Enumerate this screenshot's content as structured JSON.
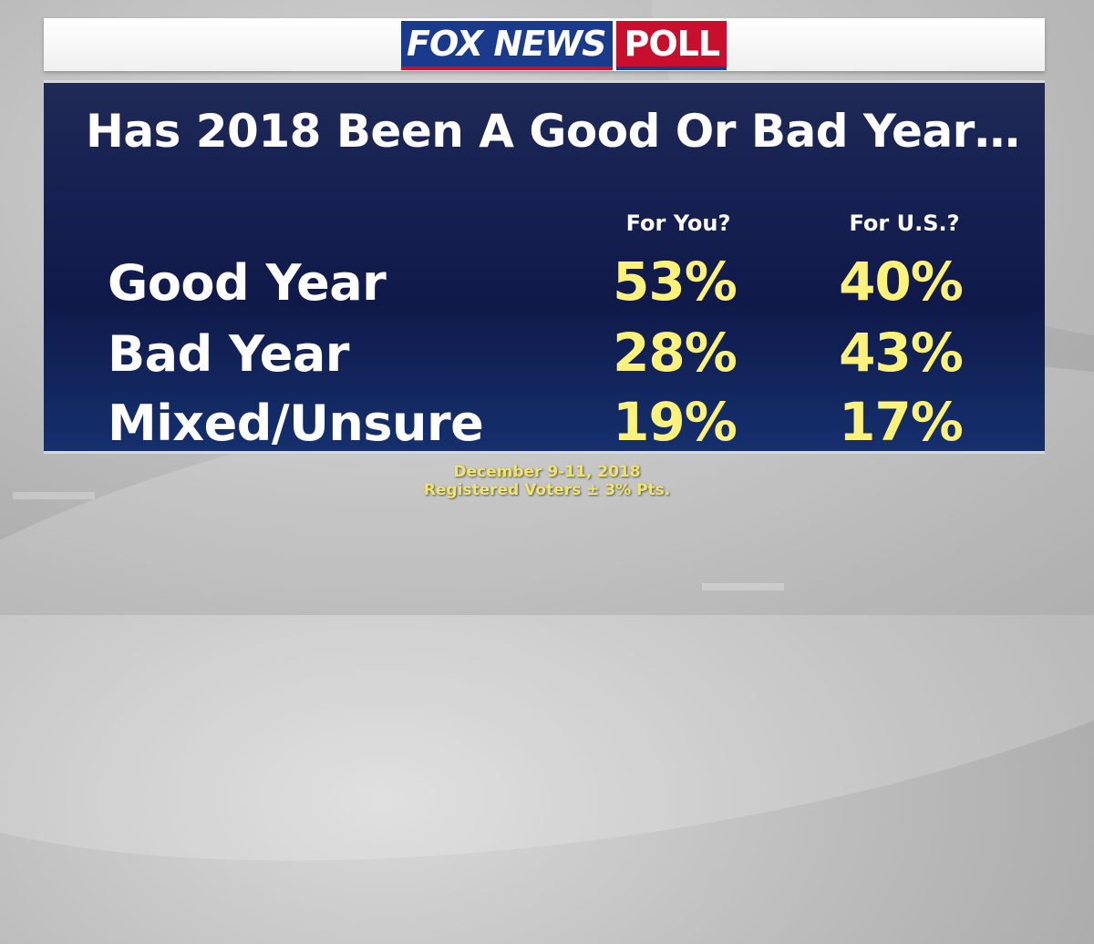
{
  "header": {
    "logo_fox": "FOX NEWS",
    "logo_poll": "POLL"
  },
  "chart_data": {
    "type": "table",
    "title": "Has 2018 Been A Good Or Bad Year…",
    "columns": [
      "For You?",
      "For U.S.?"
    ],
    "rows": [
      {
        "label": "Good Year",
        "values": [
          "53%",
          "40%"
        ]
      },
      {
        "label": "Bad Year",
        "values": [
          "28%",
          "43%"
        ]
      },
      {
        "label": "Mixed/Unsure",
        "values": [
          "19%",
          "17%"
        ]
      }
    ]
  },
  "footer": {
    "date": "December 9-11, 2018",
    "sample": "Registered Voters ± 3% Pts."
  },
  "colors": {
    "panel": "#162052",
    "values": "#fff27a",
    "fox_blue": "#1a3a8c",
    "fox_red": "#c8102e"
  }
}
